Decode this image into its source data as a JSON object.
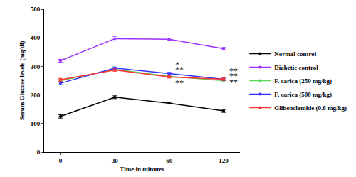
{
  "chart_data": {
    "type": "line",
    "x_label": "Time in minutes",
    "y_label": "Serum Glucose levels (mg/dl)",
    "categories": [
      "0",
      "30",
      "60",
      "120"
    ],
    "ylim": [
      0,
      500
    ],
    "yticks": [
      0,
      100,
      200,
      300,
      400,
      500
    ],
    "grid": false,
    "legend": "right",
    "marker": "circle",
    "series": [
      {
        "name": "Normal control",
        "color": "#000000",
        "values": [
          125,
          192,
          171,
          144
        ],
        "errors": [
          6,
          5,
          3,
          5
        ]
      },
      {
        "name": "Diabetic control",
        "color": "#9b30ff",
        "values": [
          320,
          397,
          395,
          362
        ],
        "errors": [
          5,
          8,
          4,
          4
        ]
      },
      {
        "name": "F. carica (250 mg/kg)",
        "color": "#5cd65c",
        "values": [
          250,
          290,
          265,
          250
        ],
        "errors": [
          4,
          4,
          4,
          4
        ]
      },
      {
        "name": "F. carica (500 mg/kg)",
        "color": "#3333ff",
        "values": [
          241,
          294,
          275,
          255
        ],
        "errors": [
          5,
          4,
          4,
          4
        ]
      },
      {
        "name": "Glibenclamide (0.6 mg/kg)",
        "color": "#ff3333",
        "values": [
          253,
          287,
          263,
          255
        ],
        "errors": [
          5,
          4,
          4,
          4
        ]
      }
    ],
    "annotations": [
      {
        "text": "*",
        "x": "60",
        "y": 305
      },
      {
        "text": "**",
        "x": "60",
        "y": 288
      },
      {
        "text": "**",
        "x": "60",
        "y": 242
      },
      {
        "text": "**",
        "x": "120",
        "y": 283
      },
      {
        "text": "**",
        "x": "120",
        "y": 266
      },
      {
        "text": "**",
        "x": "120",
        "y": 245
      }
    ]
  }
}
